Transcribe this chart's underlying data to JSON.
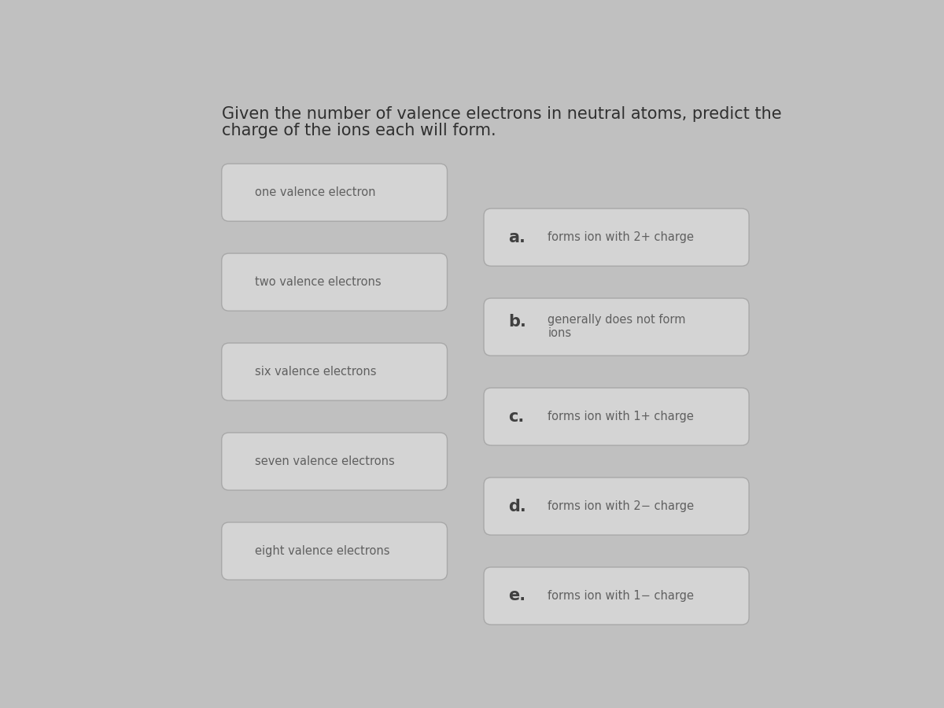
{
  "title_line1": "Given the number of valence electrons in neutral atoms, predict the",
  "title_line2": "charge of the ions each will form.",
  "bg_color": "#c0c0c0",
  "box_bg_color": "#d4d4d4",
  "box_border_color": "#a8a8a8",
  "left_items": [
    "one valence electron",
    "two valence electrons",
    "six valence electrons",
    "seven valence electrons",
    "eight valence electrons"
  ],
  "right_items": [
    {
      "label": "a.",
      "text": "forms ion with 2+ charge",
      "multiline": false
    },
    {
      "label": "b.",
      "text": "generally does not form\nions",
      "multiline": true
    },
    {
      "label": "c.",
      "text": "forms ion with 1+ charge",
      "multiline": false
    },
    {
      "label": "d.",
      "text": "forms ion with 2− charge",
      "multiline": false
    },
    {
      "label": "e.",
      "text": "forms ion with 1− charge",
      "multiline": false
    }
  ],
  "title_fontsize": 15,
  "item_fontsize": 10.5,
  "label_fontsize": 15,
  "text_color": "#606060",
  "label_color": "#404040",
  "title_color": "#303030"
}
